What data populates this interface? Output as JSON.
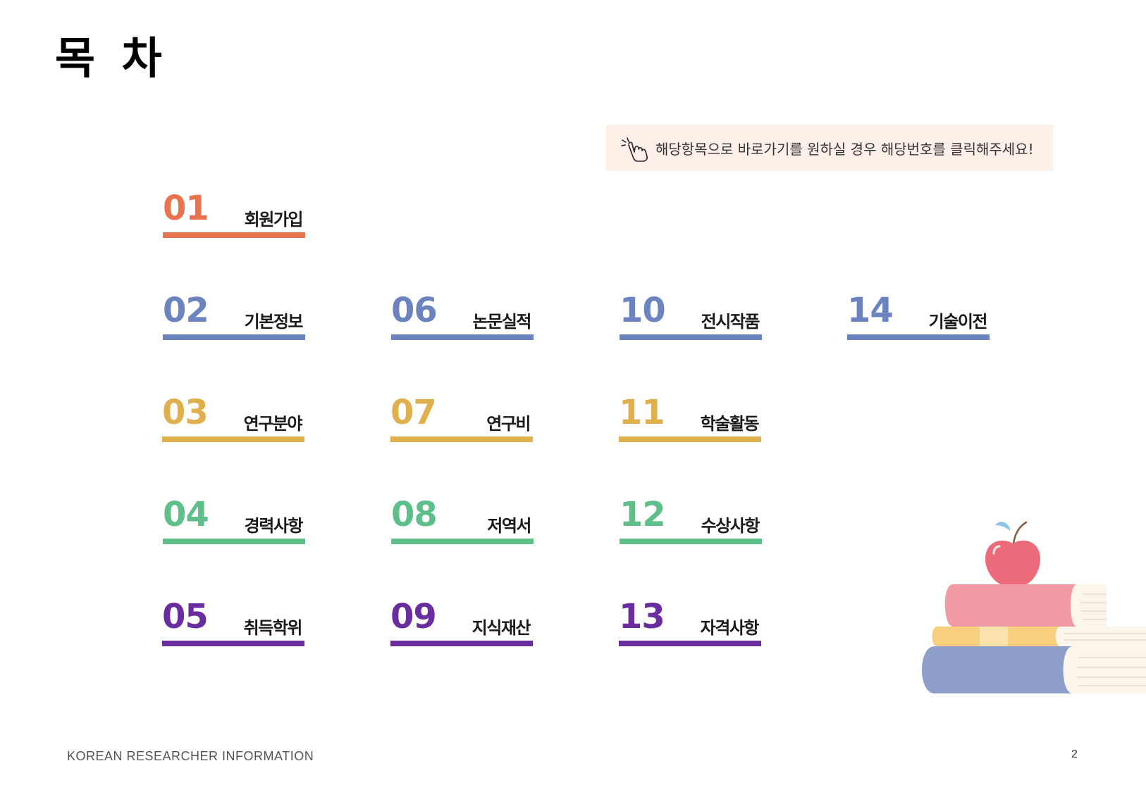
{
  "title": "목 차",
  "hint": {
    "icon": "hand-pointer-click-icon",
    "text": "해당항목으로 바로가기를 원하실 경우 해당번호를 클릭해주세요!"
  },
  "colors": {
    "orange": "#e8734f",
    "blue": "#6b84c0",
    "yellow": "#e0b04e",
    "green": "#5fbf8a",
    "purple": "#6a2d9f",
    "hint_bg": "#fdf0e8"
  },
  "toc": [
    {
      "num": "01",
      "label": "회원가입",
      "color": "#e8734f"
    },
    {
      "num": "02",
      "label": "기본정보",
      "color": "#6b84c0"
    },
    {
      "num": "03",
      "label": "연구분야",
      "color": "#e0b04e"
    },
    {
      "num": "04",
      "label": "경력사항",
      "color": "#5fbf8a"
    },
    {
      "num": "05",
      "label": "취득학위",
      "color": "#6a2d9f"
    },
    {
      "num": "06",
      "label": "논문실적",
      "color": "#6b84c0"
    },
    {
      "num": "07",
      "label": "연구비",
      "color": "#e0b04e"
    },
    {
      "num": "08",
      "label": "저역서",
      "color": "#5fbf8a"
    },
    {
      "num": "09",
      "label": "지식재산",
      "color": "#6a2d9f"
    },
    {
      "num": "10",
      "label": "전시작품",
      "color": "#6b84c0"
    },
    {
      "num": "11",
      "label": "학술활동",
      "color": "#e0b04e"
    },
    {
      "num": "12",
      "label": "수상사항",
      "color": "#5fbf8a"
    },
    {
      "num": "13",
      "label": "자격사항",
      "color": "#6a2d9f"
    },
    {
      "num": "14",
      "label": "기술이전",
      "color": "#6b84c0"
    }
  ],
  "illustration": "books-with-apple-illustration",
  "footer": "KOREAN RESEARCHER INFORMATION",
  "page_number": "2"
}
